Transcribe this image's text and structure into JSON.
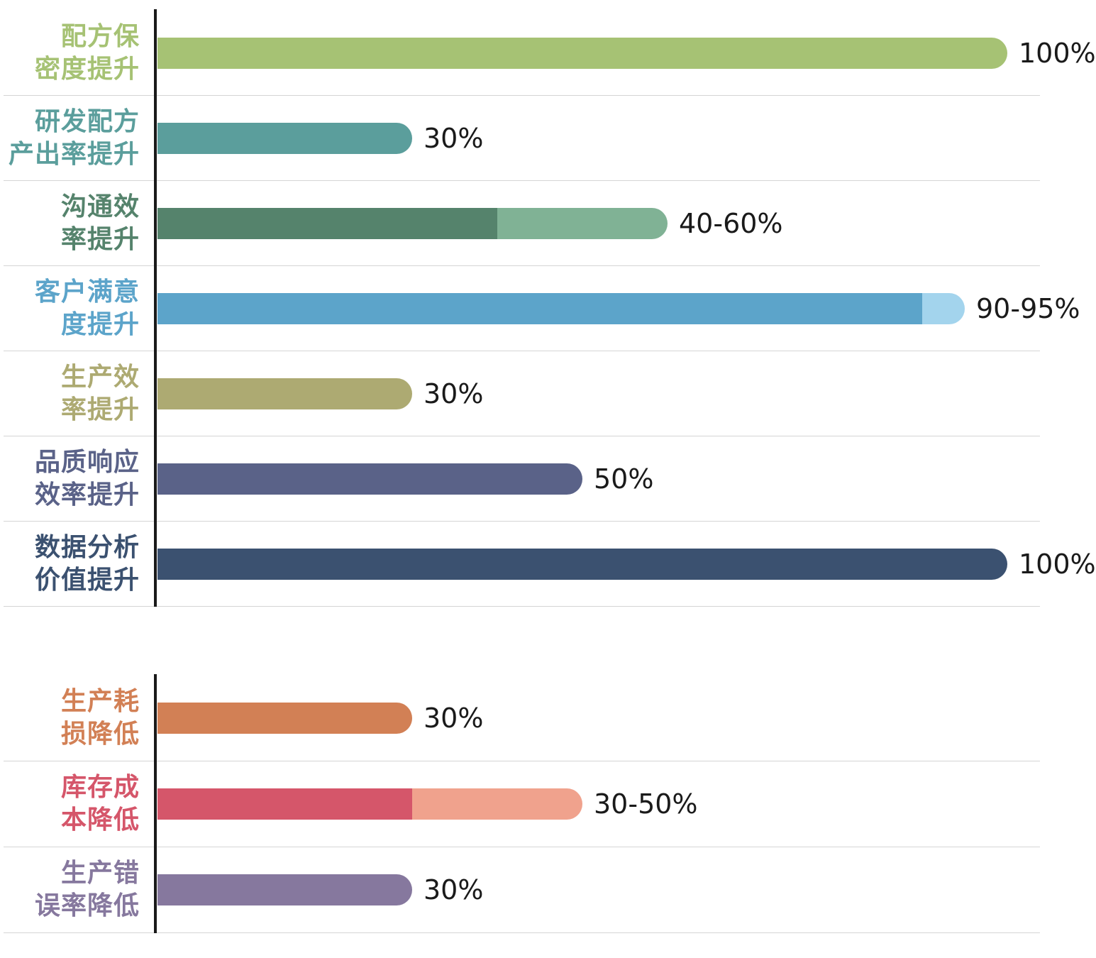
{
  "style": {
    "background": "#ffffff",
    "axis_color": "#1a1a1a",
    "separator_color": "#d5d5d5",
    "value_label_color": "#1a1a1a"
  },
  "chart_data": [
    {
      "type": "bar",
      "orientation": "horizontal",
      "title": "",
      "unit": "%",
      "xlim": [
        0,
        100
      ],
      "grid": "row-separators-only",
      "value_labels_position": "right-of-bar",
      "rows": [
        {
          "label_lines": [
            "配方保",
            "密度提升"
          ],
          "label_color": "#a6c274",
          "value_label": "100%",
          "value_min": 100,
          "value_max": 100,
          "bar_colors": [
            "#a6c274"
          ]
        },
        {
          "label_lines": [
            "研发配方",
            "产出率提升"
          ],
          "label_color": "#5b9e9c",
          "value_label": "30%",
          "value_min": 30,
          "value_max": 30,
          "bar_colors": [
            "#5b9e9c"
          ]
        },
        {
          "label_lines": [
            "沟通效",
            "率提升"
          ],
          "label_color": "#55836c",
          "value_label": "40-60%",
          "value_min": 40,
          "value_max": 60,
          "bar_colors": [
            "#55836c",
            "#80b295"
          ]
        },
        {
          "label_lines": [
            "客户满意",
            "度提升"
          ],
          "label_color": "#5ca4ca",
          "value_label": "90-95%",
          "value_min": 90,
          "value_max": 95,
          "bar_colors": [
            "#5ca4ca",
            "#a3d4ed"
          ]
        },
        {
          "label_lines": [
            "生产效",
            "率提升"
          ],
          "label_color": "#adaa72",
          "value_label": "30%",
          "value_min": 30,
          "value_max": 30,
          "bar_colors": [
            "#adaa72"
          ]
        },
        {
          "label_lines": [
            "品质响应",
            "效率提升"
          ],
          "label_color": "#5a6288",
          "value_label": "50%",
          "value_min": 50,
          "value_max": 50,
          "bar_colors": [
            "#5a6288"
          ]
        },
        {
          "label_lines": [
            "数据分析",
            "价值提升"
          ],
          "label_color": "#3b5170",
          "value_label": "100%",
          "value_min": 100,
          "value_max": 100,
          "bar_colors": [
            "#3b5170"
          ]
        }
      ]
    },
    {
      "type": "bar",
      "orientation": "horizontal",
      "title": "",
      "unit": "%",
      "xlim": [
        0,
        100
      ],
      "grid": "row-separators-only",
      "value_labels_position": "right-of-bar",
      "rows": [
        {
          "label_lines": [
            "生产耗",
            "损降低"
          ],
          "label_color": "#d28055",
          "value_label": "30%",
          "value_min": 30,
          "value_max": 30,
          "bar_colors": [
            "#d28055"
          ]
        },
        {
          "label_lines": [
            "库存成",
            "本降低"
          ],
          "label_color": "#d5566a",
          "value_label": "30-50%",
          "value_min": 30,
          "value_max": 50,
          "bar_colors": [
            "#d5566a",
            "#f0a28d"
          ]
        },
        {
          "label_lines": [
            "生产错",
            "误率降低"
          ],
          "label_color": "#86789e",
          "value_label": "30%",
          "value_min": 30,
          "value_max": 30,
          "bar_colors": [
            "#86789e"
          ]
        }
      ]
    }
  ]
}
